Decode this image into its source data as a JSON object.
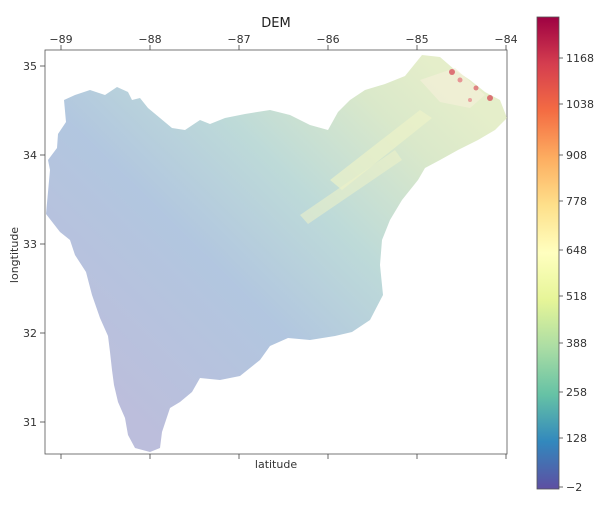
{
  "map": {
    "title": "DEM",
    "x_axis_label": "latitude",
    "y_axis_label": "longtitude",
    "x_ticks": [
      "−89",
      "−88",
      "−87",
      "−86",
      "−85",
      "−84"
    ],
    "y_ticks": [
      "35",
      "34",
      "33",
      "32",
      "31"
    ],
    "colorbar_ticks": [
      "1168",
      "1038",
      "908",
      "778",
      "648",
      "518",
      "388",
      "258",
      "128",
      "−2"
    ],
    "colormap": [
      "#5e4fa2",
      "#3288bd",
      "#66c2a5",
      "#abdda4",
      "#e6f598",
      "#ffffbf",
      "#fee08b",
      "#fdae61",
      "#f46d43",
      "#d53e4f",
      "#9e0142"
    ]
  }
}
